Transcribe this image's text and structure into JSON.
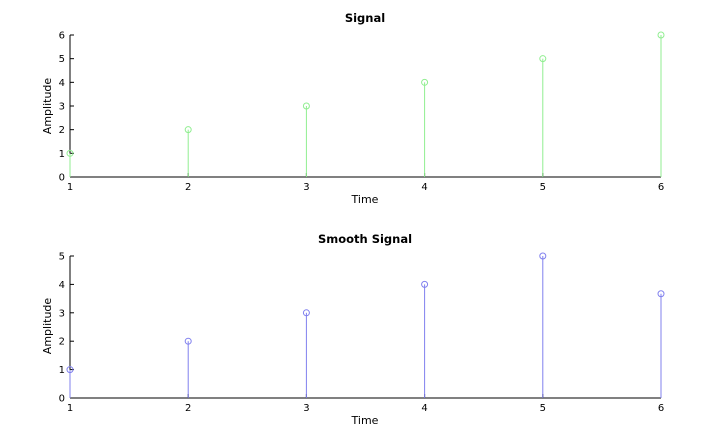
{
  "chart_data": [
    {
      "type": "stem",
      "title": "Signal",
      "xlabel": "Time",
      "ylabel": "Amplitude",
      "xlim": [
        1,
        6
      ],
      "ylim": [
        0,
        6
      ],
      "x_ticks": [
        1,
        2,
        3,
        4,
        5,
        6
      ],
      "y_ticks": [
        0,
        1,
        2,
        3,
        4,
        5,
        6
      ],
      "grid": false,
      "color": "#90ee90",
      "series": [
        {
          "x": [
            1,
            2,
            3,
            4,
            5,
            6
          ],
          "values": [
            1,
            2,
            3,
            4,
            5,
            6
          ]
        }
      ]
    },
    {
      "type": "stem",
      "title": "Smooth Signal",
      "xlabel": "Time",
      "ylabel": "Amplitude",
      "xlim": [
        1,
        6
      ],
      "ylim": [
        0,
        5
      ],
      "x_ticks": [
        1,
        2,
        3,
        4,
        5,
        6
      ],
      "y_ticks": [
        0,
        1,
        2,
        3,
        4,
        5
      ],
      "grid": false,
      "color": "#8080ee",
      "series": [
        {
          "x": [
            1,
            2,
            3,
            4,
            5,
            6
          ],
          "values": [
            1,
            2,
            3,
            4,
            5,
            3.67
          ]
        }
      ]
    }
  ]
}
